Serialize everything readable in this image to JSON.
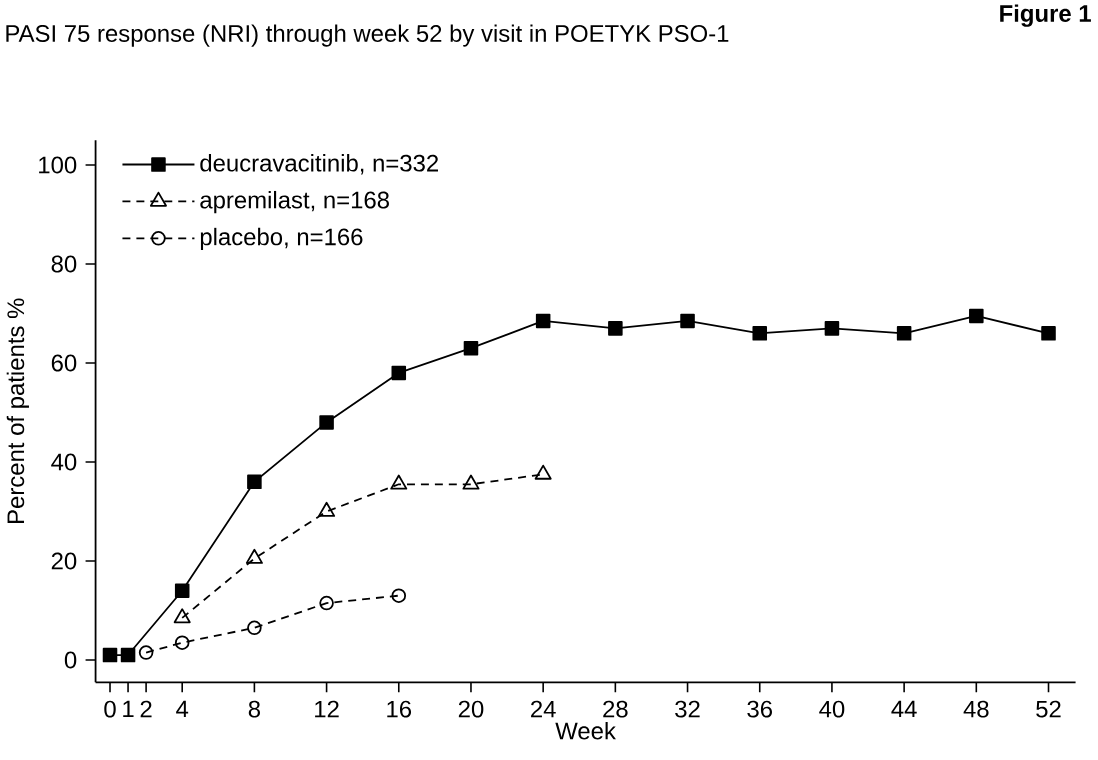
{
  "chart_data": {
    "type": "line",
    "title": "PASI 75 response (NRI) through week 52 by visit in POETYK PSO-1",
    "annotations": [
      "Figure 1"
    ],
    "xlabel": "Week",
    "ylabel": "Percent of patients %",
    "xlim": [
      -0.8,
      53.5
    ],
    "ylim": [
      -4.5,
      105
    ],
    "xticks": [
      0,
      1,
      2,
      4,
      8,
      12,
      16,
      20,
      24,
      28,
      32,
      36,
      40,
      44,
      48,
      52
    ],
    "yticks": [
      0,
      20,
      40,
      60,
      80,
      100
    ],
    "grid": false,
    "legend": "top left",
    "series": [
      {
        "name": "deucravacitinib, n=332",
        "color": "#000000",
        "marker": "square",
        "line_style": "solid",
        "x": [
          0,
          1,
          4,
          8,
          12,
          16,
          20,
          24,
          28,
          32,
          36,
          40,
          44,
          48,
          52
        ],
        "values": [
          1,
          1,
          14,
          36,
          48,
          58,
          63,
          68.5,
          67,
          68.5,
          66,
          67,
          66,
          69.5,
          66
        ]
      },
      {
        "name": "apremilast, n=168",
        "color": "#000000",
        "marker": "triangle",
        "line_style": "dashed",
        "x": [
          4,
          8,
          12,
          16,
          20,
          24
        ],
        "values": [
          8.5,
          20.5,
          30,
          35.5,
          35.5,
          37.5
        ]
      },
      {
        "name": "placebo, n=166",
        "color": "#000000",
        "marker": "circle",
        "line_style": "dashed",
        "x": [
          2,
          4,
          8,
          12,
          16
        ],
        "values": [
          1.5,
          3.5,
          6.5,
          11.5,
          13
        ]
      }
    ]
  }
}
